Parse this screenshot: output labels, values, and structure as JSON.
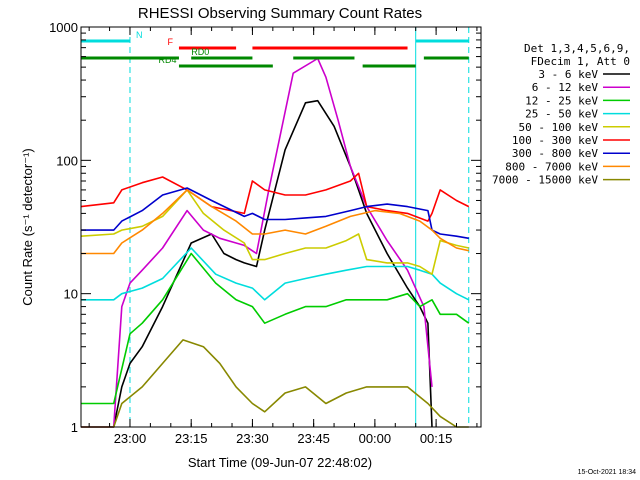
{
  "chart_data": {
    "type": "line",
    "title": "RHESSI Observing Summary Count Rates",
    "xlabel": "Start Time (09-Jun-07 22:48:02)",
    "ylabel": "Count Rate (s⁻¹ detector⁻¹)",
    "y_scale": "log",
    "ylim": [
      1,
      1000
    ],
    "xlim": [
      "22:48",
      "00:26"
    ],
    "x_tick_labels": [
      "23:00",
      "23:15",
      "23:30",
      "23:45",
      "00:00",
      "00:15"
    ],
    "x_tick_values_min": [
      12,
      27,
      42,
      57,
      72,
      87
    ],
    "y_tick_labels": [
      "1",
      "10",
      "100",
      "1000"
    ],
    "y_tick_values": [
      1,
      10,
      100,
      1000
    ],
    "x_unit": "minutes since 22:48",
    "series": [
      {
        "name": "3 - 6 keV",
        "color": "#000000",
        "x": [
          0,
          8,
          10,
          12,
          15,
          20,
          27,
          32,
          35,
          38,
          40,
          43,
          45,
          50,
          55,
          58,
          62,
          66,
          70,
          75,
          80,
          83,
          85,
          86
        ],
        "values": [
          1,
          1,
          2,
          3,
          4,
          8,
          24,
          28,
          20,
          18,
          17,
          16,
          30,
          120,
          270,
          280,
          180,
          90,
          40,
          20,
          11,
          8,
          6,
          1
        ]
      },
      {
        "name": "6 - 12 keV",
        "color": "#cc00cc",
        "x": [
          0,
          8,
          10,
          12,
          15,
          20,
          26,
          30,
          34,
          38,
          40,
          43,
          46,
          52,
          58,
          60,
          63,
          66,
          70,
          75,
          80,
          84,
          86
        ],
        "values": [
          1,
          1,
          8,
          12,
          15,
          22,
          42,
          30,
          26,
          24,
          23,
          20,
          60,
          450,
          580,
          420,
          200,
          90,
          45,
          25,
          15,
          8,
          2
        ]
      },
      {
        "name": "12 - 25 keV",
        "color": "#00cc00",
        "x": [
          0,
          8,
          12,
          15,
          20,
          27,
          33,
          38,
          42,
          45,
          50,
          55,
          60,
          65,
          70,
          75,
          80,
          83,
          86,
          88,
          92,
          95
        ],
        "values": [
          1.5,
          1.5,
          5,
          6,
          9,
          20,
          12,
          9,
          8,
          6,
          7,
          8,
          8,
          9,
          9,
          9,
          10,
          8,
          9,
          7,
          7,
          6
        ]
      },
      {
        "name": "25 - 50 keV",
        "color": "#00dddd",
        "x": [
          0,
          8,
          10,
          15,
          20,
          27,
          33,
          38,
          42,
          45,
          50,
          55,
          60,
          65,
          70,
          75,
          80,
          83,
          86,
          88,
          92,
          95
        ],
        "values": [
          9,
          9,
          10,
          11,
          13,
          22,
          14,
          12,
          11,
          9,
          12,
          13,
          14,
          15,
          16,
          16,
          16,
          15,
          14,
          12,
          10,
          9
        ]
      },
      {
        "name": "50 - 100 keV",
        "color": "#cccc00",
        "x": [
          0,
          8,
          10,
          15,
          20,
          26,
          30,
          35,
          40,
          42,
          45,
          50,
          55,
          60,
          65,
          68,
          70,
          75,
          80,
          83,
          86,
          88,
          92,
          95
        ],
        "values": [
          27,
          28,
          30,
          32,
          38,
          60,
          40,
          30,
          24,
          18,
          18,
          20,
          22,
          22,
          25,
          28,
          18,
          17,
          17,
          16,
          14,
          25,
          23,
          22
        ]
      },
      {
        "name": "100 - 300 keV",
        "color": "#ff0000",
        "x": [
          0,
          8,
          10,
          15,
          20,
          26,
          32,
          40,
          42,
          45,
          50,
          55,
          60,
          66,
          68,
          70,
          75,
          80,
          85,
          86,
          88,
          92,
          95
        ],
        "values": [
          45,
          48,
          60,
          68,
          75,
          60,
          45,
          40,
          70,
          60,
          55,
          55,
          60,
          70,
          80,
          45,
          42,
          40,
          35,
          40,
          60,
          50,
          45
        ]
      },
      {
        "name": "300 - 800 keV",
        "color": "#0000cc",
        "x": [
          0,
          8,
          10,
          15,
          20,
          26,
          32,
          40,
          42,
          45,
          50,
          55,
          60,
          66,
          70,
          75,
          80,
          85,
          86,
          88,
          92,
          95
        ],
        "values": [
          30,
          30,
          35,
          42,
          55,
          62,
          50,
          38,
          40,
          36,
          36,
          37,
          38,
          42,
          45,
          47,
          45,
          42,
          30,
          28,
          27,
          26
        ]
      },
      {
        "name": "800 - 7000 keV",
        "color": "#ff8800",
        "x": [
          0,
          8,
          10,
          15,
          20,
          26,
          32,
          38,
          42,
          45,
          50,
          55,
          60,
          66,
          72,
          78,
          83,
          86,
          88,
          92,
          95
        ],
        "values": [
          20,
          20,
          24,
          30,
          40,
          60,
          45,
          35,
          28,
          28,
          30,
          28,
          32,
          38,
          42,
          40,
          35,
          30,
          26,
          22,
          21
        ]
      },
      {
        "name": "7000 - 15000 keV",
        "color": "#888800",
        "x": [
          0,
          8,
          10,
          15,
          20,
          25,
          30,
          34,
          38,
          42,
          45,
          50,
          55,
          60,
          65,
          70,
          75,
          80,
          85,
          88,
          92,
          95
        ],
        "values": [
          1,
          1,
          1.5,
          2,
          3,
          4.5,
          4,
          3,
          2,
          1.5,
          1.3,
          1.8,
          2,
          1.5,
          1.8,
          2,
          2,
          2,
          1.5,
          1.2,
          1,
          1
        ]
      }
    ],
    "legend": {
      "header_lines": [
        "Det 1,3,4,5,6,9,",
        "FDecim 1, Att 0"
      ],
      "placement": "right"
    },
    "annotation_bars": [
      {
        "label": "N",
        "color": "#00dddd",
        "segments": [
          [
            0,
            12
          ],
          [
            82,
            95
          ]
        ]
      },
      {
        "label": "F",
        "color": "#ff0000",
        "segments": [
          [
            24,
            38
          ],
          [
            42,
            80
          ]
        ]
      },
      {
        "label": "RD0",
        "color": "#008800",
        "segments": [
          [
            0,
            24
          ],
          [
            27,
            42
          ],
          [
            52,
            67
          ],
          [
            84,
            95
          ]
        ]
      },
      {
        "label": "RD4",
        "color": "#008800",
        "segments": [
          [
            24,
            47
          ],
          [
            69,
            82
          ]
        ]
      }
    ],
    "vertical_markers": [
      {
        "color": "#00dddd",
        "style": "solid",
        "x": [
          0,
          82
        ]
      },
      {
        "color": "#00dddd",
        "style": "dashed",
        "x": [
          12,
          95
        ]
      }
    ],
    "timestamp": "15-Oct-2021 18:34"
  }
}
